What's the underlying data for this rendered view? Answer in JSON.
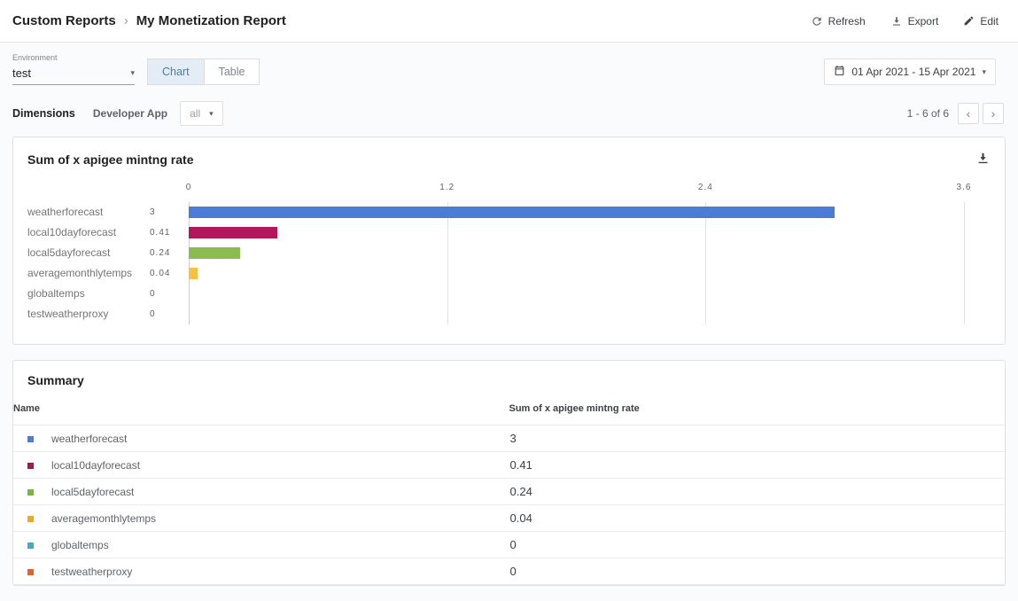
{
  "header": {
    "breadcrumb": {
      "root": "Custom Reports",
      "separator": "›",
      "current": "My Monetization Report"
    },
    "actions": {
      "refresh": "Refresh",
      "export": "Export",
      "edit": "Edit"
    }
  },
  "toolbar": {
    "environment": {
      "label": "Environment",
      "value": "test"
    },
    "view_toggle": {
      "chart_label": "Chart",
      "table_label": "Table",
      "selected": "Chart"
    },
    "date_range": {
      "value": "01 Apr 2021 - 15 Apr 2021"
    }
  },
  "dimensions": {
    "label": "Dimensions",
    "dimension_name": "Developer App",
    "selector_value": "all",
    "pagination": {
      "text": "1 - 6 of 6"
    }
  },
  "glyphs": {
    "caret_down": "▾",
    "chevron_left": "‹",
    "chevron_right": "›"
  },
  "icons": {
    "refresh": "circular-arrow-icon",
    "export": "download-tray-icon",
    "edit": "pencil-icon",
    "date_range": "calendar-icon",
    "chart_download": "download-tray-icon"
  },
  "chart_card": {
    "title": "Sum of x apigee mintng rate"
  },
  "chart_data": {
    "type": "bar",
    "orientation": "horizontal",
    "title": "Sum of x apigee mintng rate",
    "xlabel": "",
    "ylabel": "",
    "categories": [
      "weatherforecast",
      "local10dayforecast",
      "local5dayforecast",
      "averagemonthlytemps",
      "globaltemps",
      "testweatherproxy"
    ],
    "values": [
      3,
      0.41,
      0.24,
      0.04,
      0,
      0
    ],
    "value_labels": [
      "3",
      "0.41",
      "0.24",
      "0.04",
      "0",
      "0"
    ],
    "bar_colors": [
      "#4d7cd6",
      "#b2175c",
      "#8cbb4e",
      "#f6c243",
      "#4d7cd6",
      "#4d7cd6"
    ],
    "xlim": [
      0,
      3.6
    ],
    "x_ticks": [
      0,
      1.2,
      2.4,
      3.6
    ],
    "grid": true,
    "legend_position": "none"
  },
  "summary": {
    "title": "Summary",
    "columns": [
      "Name",
      "Sum of x apigee mintng rate"
    ],
    "rows": [
      {
        "name": "weatherforecast",
        "value": "3",
        "color": "#4d7cd6"
      },
      {
        "name": "local10dayforecast",
        "value": "0.41",
        "color": "#a0174f"
      },
      {
        "name": "local5dayforecast",
        "value": "0.24",
        "color": "#7cb342"
      },
      {
        "name": "averagemonthlytemps",
        "value": "0.04",
        "color": "#eaa82e"
      },
      {
        "name": "globaltemps",
        "value": "0",
        "color": "#4aa6c9"
      },
      {
        "name": "testweatherproxy",
        "value": "0",
        "color": "#dd6234"
      }
    ]
  }
}
